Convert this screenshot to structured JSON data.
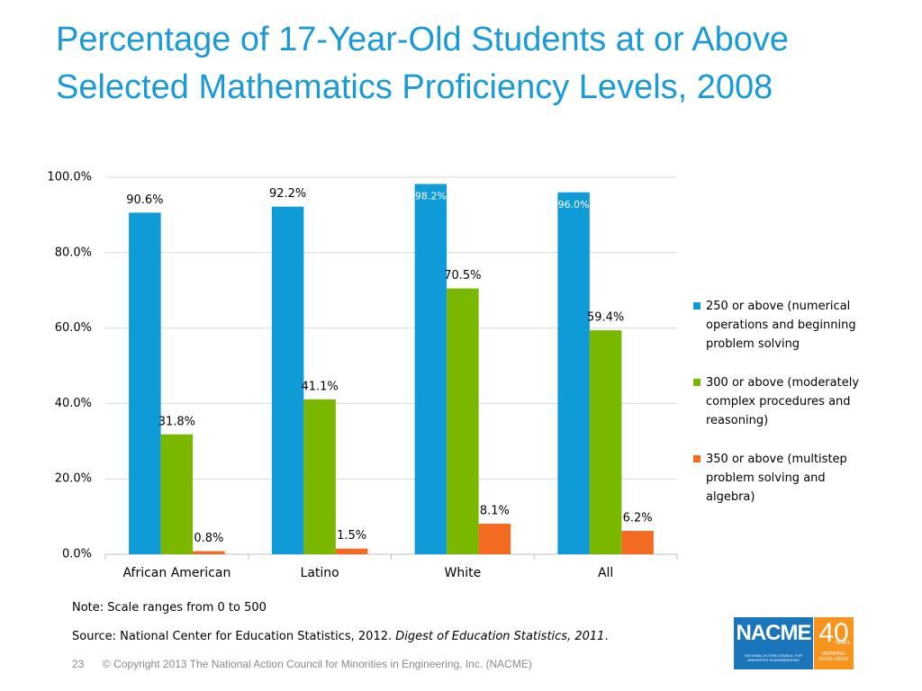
{
  "title": "Percentage of 17-Year-Old Students at or Above Selected Mathematics Proficiency Levels, 2008",
  "chart_data": {
    "type": "bar",
    "categories": [
      "African American",
      "Latino",
      "White",
      "All"
    ],
    "series": [
      {
        "name": "250 or above (numerical operations and beginning problem solving",
        "color": "#0f9ad8",
        "values": [
          90.6,
          92.2,
          98.2,
          96.0
        ],
        "value_labels": [
          "90.6%",
          "92.2%",
          "98.2%",
          "96.0%"
        ]
      },
      {
        "name": "300 or above (moderately complex procedures and reasoning)",
        "color": "#7ab800",
        "values": [
          31.8,
          41.1,
          70.5,
          59.4
        ],
        "value_labels": [
          "31.8%",
          "41.1%",
          "70.5%",
          "59.4%"
        ]
      },
      {
        "name": "350 or above (multistep problem solving and algebra)",
        "color": "#f26b21",
        "values": [
          0.8,
          1.5,
          8.1,
          6.2
        ],
        "value_labels": [
          "0.8%",
          "1.5%",
          "8.1%",
          "6.2%"
        ]
      }
    ],
    "ylim": [
      0,
      100
    ],
    "yticks": [
      {
        "value": 0,
        "label": "0.0%"
      },
      {
        "value": 20,
        "label": "20.0%"
      },
      {
        "value": 40,
        "label": "40.0%"
      },
      {
        "value": 60,
        "label": "60.0%"
      },
      {
        "value": 80,
        "label": "80.0%"
      },
      {
        "value": 100,
        "label": "100.0%"
      }
    ],
    "grid": true,
    "legend": "right"
  },
  "note": "Note: Scale ranges from 0 to 500",
  "source": {
    "text": "Source: National Center for Education Statistics, 2012. ",
    "italic": "Digest of Education Statistics, 2011",
    "end": "."
  },
  "footer": {
    "page": "23",
    "copyright": "© Copyright 2013 The National Action Council for Minorities in Engineering, Inc. (NACME)"
  },
  "logo": {
    "name": "NACME",
    "number": "40",
    "years": "YEARS",
    "org": "NATIONAL ACTION COUNCIL FOR MINORITIES IN ENGINEERING",
    "tagline": "INSPIRING EXCELLENCE"
  }
}
